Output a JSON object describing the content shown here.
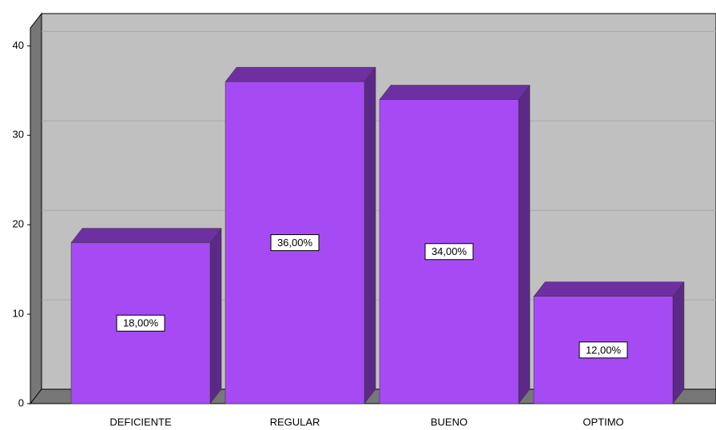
{
  "chart_data": {
    "type": "bar3d",
    "categories": [
      "DEFICIENTE",
      "REGULAR",
      "BUENO",
      "OPTIMO"
    ],
    "values": [
      18,
      36,
      34,
      12
    ],
    "value_labels": [
      "18,00%",
      "36,00%",
      "34,00%",
      "12,00%"
    ],
    "color": "#a64bf4",
    "ylim": [
      0,
      42
    ],
    "yticks": [
      0,
      10,
      20,
      30,
      40
    ],
    "grid": true
  }
}
